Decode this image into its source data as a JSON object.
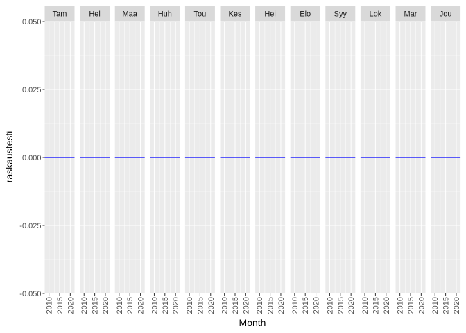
{
  "chart_data": {
    "type": "line",
    "facet_by": "month",
    "facets": [
      "Tam",
      "Hel",
      "Maa",
      "Huh",
      "Tou",
      "Kes",
      "Hei",
      "Elo",
      "Syy",
      "Lok",
      "Mar",
      "Jou"
    ],
    "xlabel": "Month",
    "ylabel": "raskaustesti",
    "xlim": [
      2008,
      2022
    ],
    "ylim": [
      -0.05,
      0.05
    ],
    "xticks": [
      2010,
      2015,
      2020
    ],
    "xtick_labels": [
      "2010",
      "2015",
      "2020"
    ],
    "yticks": [
      -0.05,
      -0.025,
      0,
      0.025,
      0.05
    ],
    "ytick_labels": [
      "-0.050",
      "-0.025",
      "0.000",
      "0.025",
      "0.050"
    ],
    "grid": true,
    "series": [
      {
        "x": [
          2008,
          2022
        ],
        "y": [
          0,
          0
        ]
      }
    ],
    "colors": {
      "panel_bg": "#ebebeb",
      "strip_bg": "#d9d9d9",
      "grid": "#ffffff",
      "line": "#0000ff"
    }
  }
}
